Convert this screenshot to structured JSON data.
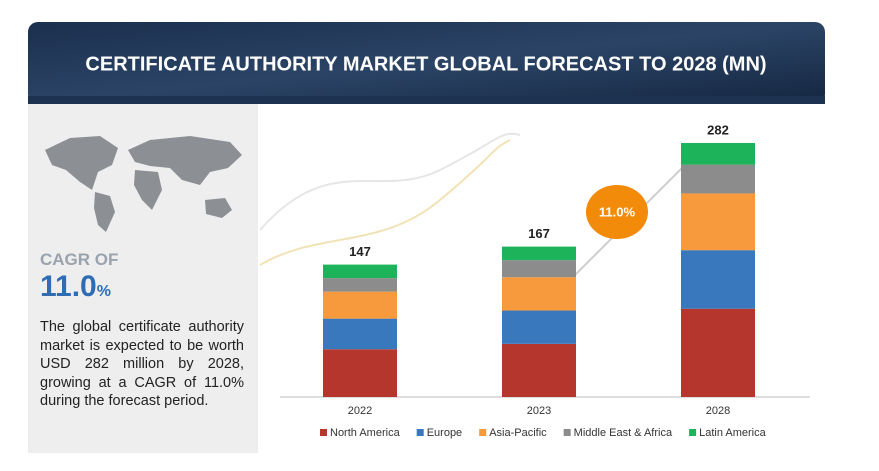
{
  "chart_data": {
    "type": "stacked_bar",
    "title": "CERTIFICATE AUTHORITY MARKET GLOBAL FORECAST TO 2028 (MN)",
    "categories": [
      "2022",
      "2023",
      "2028"
    ],
    "series": [
      {
        "name": "North America",
        "color": "#b5362c",
        "values": [
          53,
          59,
          98
        ]
      },
      {
        "name": "Europe",
        "color": "#3a78bd",
        "values": [
          34,
          37,
          65
        ]
      },
      {
        "name": "Asia-Pacific",
        "color": "#f79a3e",
        "values": [
          30,
          37,
          63
        ]
      },
      {
        "name": "Middle East & Africa",
        "color": "#8c8c8c",
        "values": [
          15,
          19,
          32
        ]
      },
      {
        "name": "Latin America",
        "color": "#1db35a",
        "values": [
          15,
          15,
          24
        ]
      }
    ],
    "totals": [
      147,
      167,
      282
    ]
  },
  "cagr": {
    "label": "CAGR OF",
    "value": "11.0",
    "unit": "%"
  },
  "bubble_label": "11.0%",
  "description": "The global certificate authority market is expected to be worth USD 282 million by 2028, growing at a CAGR of 11.0% during the forecast period."
}
